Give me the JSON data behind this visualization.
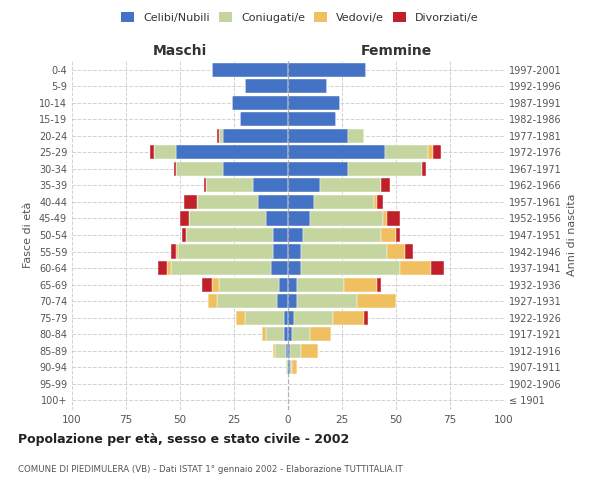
{
  "age_groups": [
    "100+",
    "95-99",
    "90-94",
    "85-89",
    "80-84",
    "75-79",
    "70-74",
    "65-69",
    "60-64",
    "55-59",
    "50-54",
    "45-49",
    "40-44",
    "35-39",
    "30-34",
    "25-29",
    "20-24",
    "15-19",
    "10-14",
    "5-9",
    "0-4"
  ],
  "birth_years": [
    "≤ 1901",
    "1902-1906",
    "1907-1911",
    "1912-1916",
    "1917-1921",
    "1922-1926",
    "1927-1931",
    "1932-1936",
    "1937-1941",
    "1942-1946",
    "1947-1951",
    "1952-1956",
    "1957-1961",
    "1962-1966",
    "1967-1971",
    "1972-1976",
    "1977-1981",
    "1982-1986",
    "1987-1991",
    "1992-1996",
    "1997-2001"
  ],
  "male": {
    "celibi": [
      0,
      0,
      0,
      1,
      2,
      2,
      5,
      4,
      8,
      7,
      7,
      10,
      14,
      16,
      30,
      52,
      30,
      22,
      26,
      20,
      35
    ],
    "coniugati": [
      0,
      0,
      1,
      5,
      8,
      18,
      28,
      28,
      46,
      44,
      40,
      36,
      28,
      22,
      22,
      10,
      2,
      0,
      0,
      0,
      0
    ],
    "vedovi": [
      0,
      0,
      0,
      1,
      2,
      4,
      4,
      3,
      2,
      1,
      0,
      0,
      0,
      0,
      0,
      0,
      0,
      0,
      0,
      0,
      0
    ],
    "divorziati": [
      0,
      0,
      0,
      0,
      0,
      0,
      0,
      5,
      4,
      2,
      2,
      4,
      6,
      1,
      1,
      2,
      1,
      0,
      0,
      0,
      0
    ]
  },
  "female": {
    "nubili": [
      0,
      0,
      1,
      1,
      2,
      3,
      4,
      4,
      6,
      6,
      7,
      10,
      12,
      15,
      28,
      45,
      28,
      22,
      24,
      18,
      36
    ],
    "coniugate": [
      0,
      0,
      1,
      5,
      8,
      18,
      28,
      22,
      46,
      40,
      36,
      34,
      28,
      28,
      34,
      20,
      7,
      0,
      0,
      0,
      0
    ],
    "vedove": [
      0,
      0,
      2,
      8,
      10,
      14,
      18,
      15,
      14,
      8,
      7,
      2,
      1,
      0,
      0,
      2,
      0,
      0,
      0,
      0,
      0
    ],
    "divorziate": [
      0,
      0,
      0,
      0,
      0,
      2,
      0,
      2,
      6,
      4,
      2,
      6,
      3,
      4,
      2,
      4,
      0,
      0,
      0,
      0,
      0
    ]
  },
  "colors": {
    "celibi_nubili": "#4472C4",
    "coniugati": "#C5D5A0",
    "vedovi": "#F0C060",
    "divorziati": "#C0202A"
  },
  "xlim": 100,
  "title": "Popolazione per età, sesso e stato civile - 2002",
  "subtitle": "COMUNE DI PIEDIMULERA (VB) - Dati ISTAT 1° gennaio 2002 - Elaborazione TUTTITALIA.IT",
  "ylabel_left": "Fasce di età",
  "ylabel_right": "Anni di nascita",
  "xlabel_left": "Maschi",
  "xlabel_right": "Femmine",
  "bg_color": "#ffffff",
  "grid_color": "#cccccc"
}
